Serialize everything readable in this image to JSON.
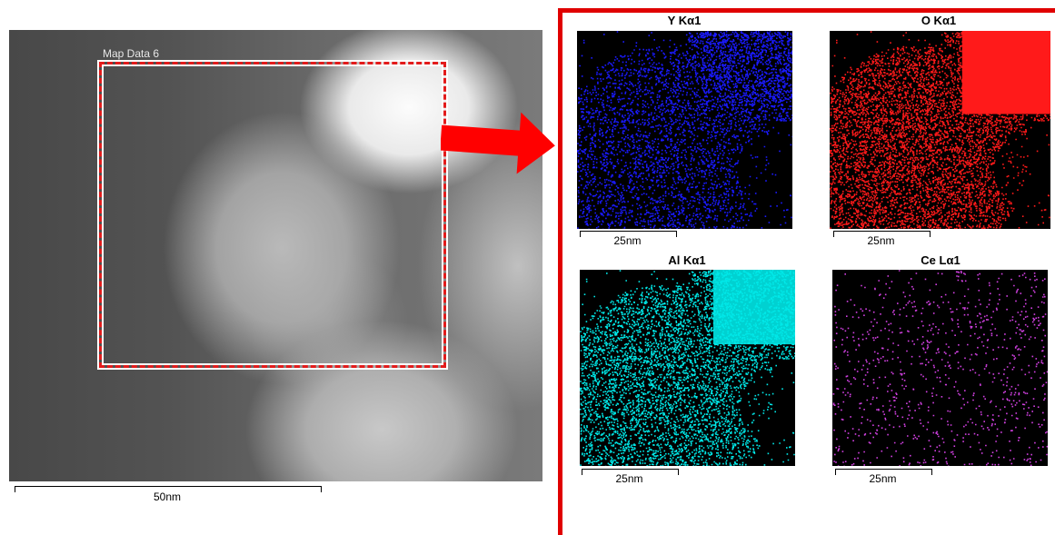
{
  "overview": {
    "map_label": "Map Data 6",
    "scale_label": "50nm"
  },
  "maps": [
    {
      "title": "Y Kα1",
      "scale_label": "25nm",
      "color": "#1a1aff"
    },
    {
      "title": "O Kα1",
      "scale_label": "25nm",
      "color": "#ff1a1a"
    },
    {
      "title": "Al Kα1",
      "scale_label": "25nm",
      "color": "#00e8e8"
    },
    {
      "title": "Ce Lα1",
      "scale_label": "25nm",
      "color": "#d040e0"
    }
  ],
  "colors": {
    "accent": "#e00000",
    "background": "#ffffff"
  }
}
